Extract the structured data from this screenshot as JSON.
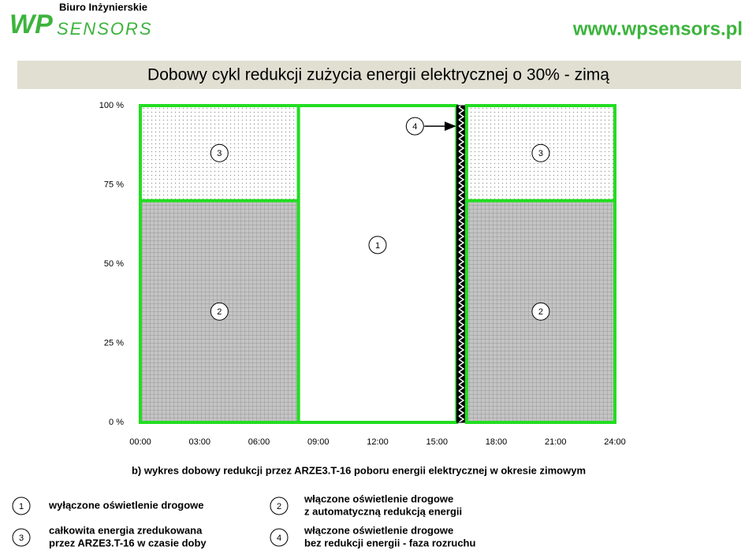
{
  "header": {
    "company": "Biuro Inżynierskie",
    "logo_wp": "WP",
    "logo_sensors": "SENSORS",
    "url": "www.wpsensors.pl"
  },
  "chart_data": {
    "type": "regions",
    "title": "Dobowy cykl redukcji zużycia energii elektrycznej o 30% - zimą",
    "caption": "b) wykres dobowy redukcji przez ARZE3.T-16 poboru energii elektrycznej w okresie zimowym",
    "xlim": [
      0,
      24
    ],
    "xticks": [
      {
        "value": 0,
        "label": "00:00"
      },
      {
        "value": 3,
        "label": "03:00"
      },
      {
        "value": 6,
        "label": "06:00"
      },
      {
        "value": 9,
        "label": "09:00"
      },
      {
        "value": 12,
        "label": "12:00"
      },
      {
        "value": 15,
        "label": "15:00"
      },
      {
        "value": 18,
        "label": "18:00"
      },
      {
        "value": 21,
        "label": "21:00"
      },
      {
        "value": 24,
        "label": "24:00"
      }
    ],
    "ylim": [
      0,
      100
    ],
    "yticks": [
      {
        "value": 0,
        "label": "0 %"
      },
      {
        "value": 25,
        "label": "25 %"
      },
      {
        "value": 50,
        "label": "50 %"
      },
      {
        "value": 75,
        "label": "75 %"
      },
      {
        "value": 100,
        "label": "100 %"
      }
    ],
    "border_color": "#22dd22",
    "regions": [
      {
        "label": "2",
        "x": [
          0,
          8
        ],
        "y": [
          0,
          70
        ],
        "pattern": "grid"
      },
      {
        "label": "3",
        "x": [
          0,
          8
        ],
        "y": [
          70,
          100
        ],
        "pattern": "dots"
      },
      {
        "label": "1",
        "x": [
          8,
          16
        ],
        "y": [
          0,
          100
        ],
        "pattern": "none"
      },
      {
        "label": "4",
        "x": [
          16,
          16.5
        ],
        "y": [
          0,
          100
        ],
        "pattern": "zigzag"
      },
      {
        "label": "2",
        "x": [
          16.5,
          24
        ],
        "y": [
          0,
          70
        ],
        "pattern": "grid"
      },
      {
        "label": "3",
        "x": [
          16.5,
          24
        ],
        "y": [
          70,
          100
        ],
        "pattern": "dots"
      }
    ]
  },
  "legend": [
    {
      "number": "1",
      "lines": [
        "wyłączone oświetlenie drogowe"
      ]
    },
    {
      "number": "2",
      "lines": [
        "włączone oświetlenie drogowe",
        "z automatyczną redukcją energii"
      ]
    },
    {
      "number": "3",
      "lines": [
        "całkowita energia zredukowana",
        "przez ARZE3.T-16 w czasie doby"
      ]
    },
    {
      "number": "4",
      "lines": [
        "włączone oświetlenie drogowe",
        "bez redukcji energii - faza rozruchu"
      ]
    }
  ]
}
